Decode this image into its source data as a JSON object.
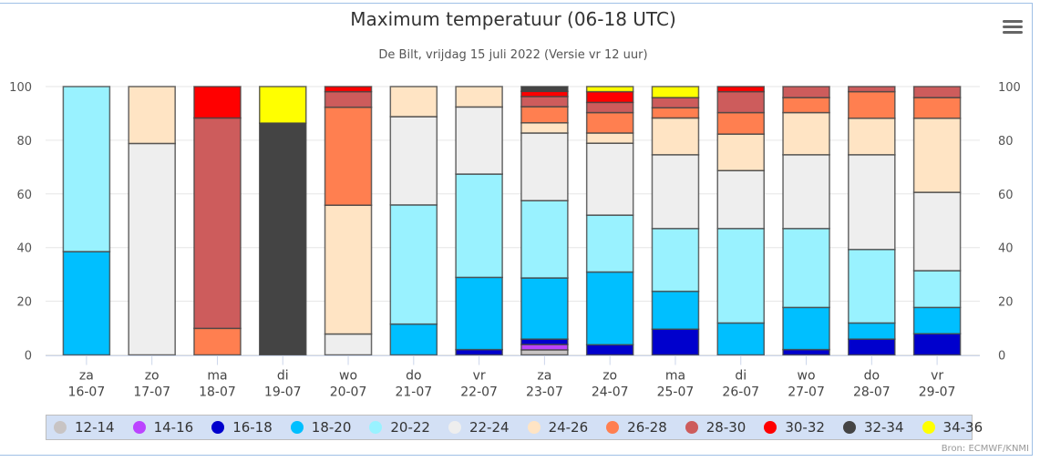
{
  "chart_data": {
    "type": "bar",
    "stacked": true,
    "title": "Maximum temperatuur (06-18 UTC)",
    "subtitle": "De Bilt, vrijdag 15 juli 2022 (Versie vr 12 uur)",
    "xlabel": "",
    "ylabel": "",
    "ylim": [
      0,
      100
    ],
    "yticks": [
      "0",
      "20",
      "40",
      "60",
      "80",
      "100"
    ],
    "grid": true,
    "legend_position": "bottom",
    "credits": "Bron: ECMWF/KNMI",
    "categories": [
      {
        "day": "za",
        "date": "16-07"
      },
      {
        "day": "zo",
        "date": "17-07"
      },
      {
        "day": "ma",
        "date": "18-07"
      },
      {
        "day": "di",
        "date": "19-07"
      },
      {
        "day": "wo",
        "date": "20-07"
      },
      {
        "day": "do",
        "date": "21-07"
      },
      {
        "day": "vr",
        "date": "22-07"
      },
      {
        "day": "za",
        "date": "23-07"
      },
      {
        "day": "zo",
        "date": "24-07"
      },
      {
        "day": "ma",
        "date": "25-07"
      },
      {
        "day": "di",
        "date": "26-07"
      },
      {
        "day": "wo",
        "date": "27-07"
      },
      {
        "day": "do",
        "date": "28-07"
      },
      {
        "day": "vr",
        "date": "29-07"
      }
    ],
    "series": [
      {
        "name": "12-14",
        "color": "#c8c4c4",
        "values": [
          0,
          0,
          0,
          0,
          0,
          0,
          0,
          1.9,
          0,
          0,
          0,
          0,
          0,
          0
        ]
      },
      {
        "name": "14-16",
        "color": "#bb44ff",
        "values": [
          0,
          0,
          0,
          0,
          0,
          0,
          0,
          2.0,
          0,
          0,
          0,
          0,
          0,
          0
        ]
      },
      {
        "name": "16-18",
        "color": "#0000cd",
        "values": [
          0,
          0,
          0,
          0,
          0,
          0,
          2.0,
          2.0,
          3.8,
          9.6,
          0,
          2.0,
          5.9,
          7.9
        ]
      },
      {
        "name": "18-20",
        "color": "#00bfff",
        "values": [
          38.5,
          0,
          0,
          0,
          0,
          11.5,
          26.9,
          22.8,
          27.1,
          14.1,
          11.9,
          15.7,
          6.0,
          9.8
        ]
      },
      {
        "name": "20-22",
        "color": "#99f2ff",
        "values": [
          61.5,
          0,
          0,
          0,
          0,
          44.4,
          38.5,
          28.8,
          21.2,
          23.4,
          35.2,
          29.4,
          27.4,
          13.7
        ]
      },
      {
        "name": "22-24",
        "color": "#eeeeee",
        "values": [
          0,
          78.8,
          0,
          0,
          7.8,
          32.9,
          25.0,
          25.2,
          26.8,
          27.5,
          21.6,
          27.5,
          35.3,
          29.2
        ]
      },
      {
        "name": "24-26",
        "color": "#ffe4c4",
        "values": [
          0,
          21.2,
          0,
          0,
          48.0,
          11.2,
          7.6,
          3.8,
          3.8,
          13.7,
          13.6,
          15.7,
          13.6,
          27.6
        ]
      },
      {
        "name": "26-28",
        "color": "#ff7f50",
        "values": [
          0,
          0,
          9.9,
          0,
          36.5,
          0,
          0,
          6.0,
          7.6,
          3.8,
          8.0,
          5.6,
          9.9,
          7.7
        ]
      },
      {
        "name": "28-30",
        "color": "#cd5c5c",
        "values": [
          0,
          0,
          78.4,
          0,
          5.8,
          0,
          0,
          3.8,
          3.8,
          3.8,
          7.8,
          4.1,
          1.9,
          4.1
        ]
      },
      {
        "name": "30-32",
        "color": "#ff0000",
        "values": [
          0,
          0,
          11.7,
          0,
          1.9,
          0,
          0,
          1.9,
          4.0,
          0,
          1.9,
          0,
          0,
          0
        ]
      },
      {
        "name": "32-34",
        "color": "#444444",
        "values": [
          0,
          0,
          0,
          86.4,
          0,
          0,
          0,
          1.8,
          0,
          0,
          0,
          0,
          0,
          0
        ]
      },
      {
        "name": "34-36",
        "color": "#ffff00",
        "values": [
          0,
          0,
          0,
          13.6,
          0,
          0,
          0,
          0,
          1.9,
          4.1,
          0,
          0,
          0,
          0
        ]
      }
    ]
  },
  "ui": {
    "menu_icon": "hamburger-menu-icon"
  }
}
